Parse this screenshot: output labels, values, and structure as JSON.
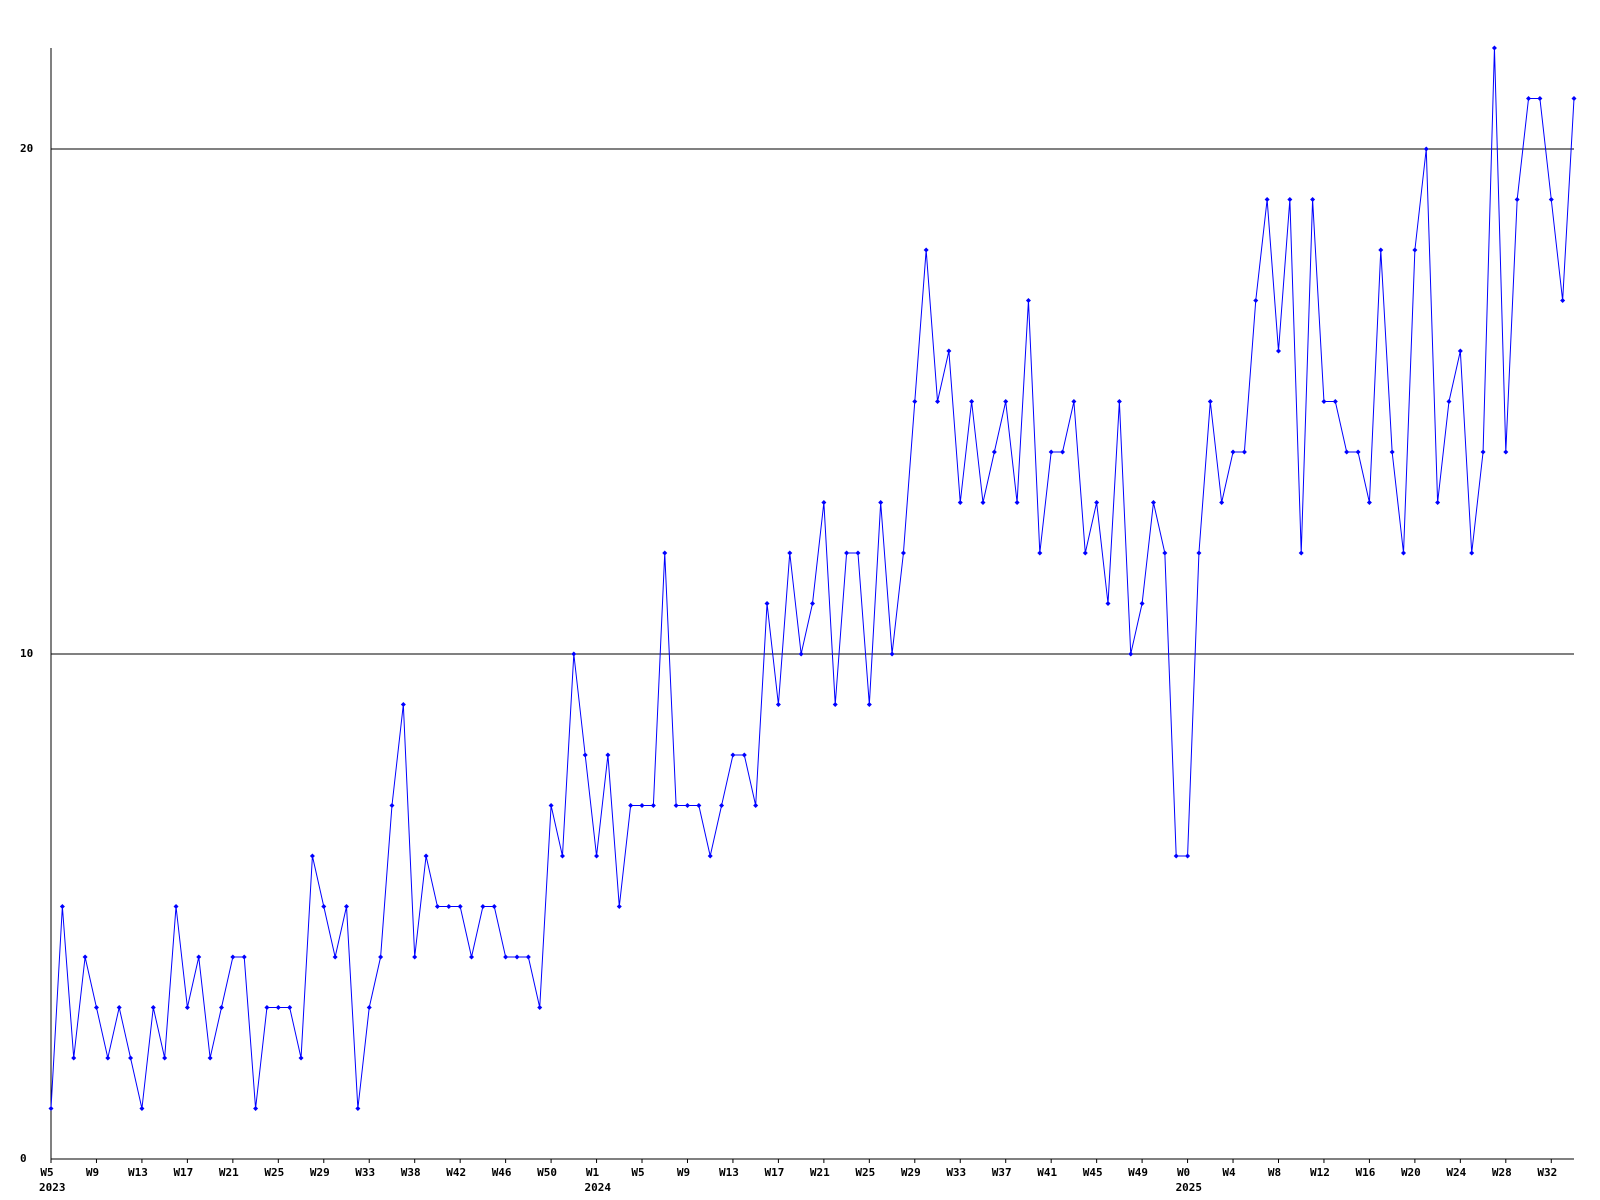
{
  "chart_data": {
    "type": "line",
    "categories": [
      "W5",
      null,
      null,
      null,
      "W9",
      null,
      null,
      null,
      "W13",
      null,
      null,
      null,
      "W17",
      null,
      null,
      null,
      "W21",
      null,
      null,
      null,
      "W25",
      null,
      null,
      null,
      "W29",
      null,
      null,
      null,
      "W33",
      null,
      null,
      null,
      "W38",
      null,
      null,
      null,
      "W42",
      null,
      null,
      null,
      "W46",
      null,
      null,
      null,
      "W50",
      null,
      null,
      null,
      "W1",
      null,
      null,
      null,
      "W5",
      null,
      null,
      null,
      "W9",
      null,
      null,
      null,
      "W13",
      null,
      null,
      null,
      "W17",
      null,
      null,
      null,
      "W21",
      null,
      null,
      null,
      "W25",
      null,
      null,
      null,
      "W29",
      null,
      null,
      null,
      "W33",
      null,
      null,
      null,
      "W37",
      null,
      null,
      null,
      "W41",
      null,
      null,
      null,
      "W45",
      null,
      null,
      null,
      "W49",
      null,
      null,
      null,
      "W0",
      null,
      null,
      null,
      "W4",
      null,
      null,
      null,
      "W8",
      null,
      null,
      null,
      "W12",
      null,
      null,
      null,
      "W16",
      null,
      null,
      null,
      "W20",
      null,
      null,
      null,
      "W24",
      null,
      null,
      null,
      "W28",
      null,
      null,
      null,
      "W32",
      null,
      null
    ],
    "years": [
      "2023",
      null,
      null,
      null,
      null,
      null,
      null,
      null,
      null,
      null,
      null,
      null,
      null,
      null,
      null,
      null,
      null,
      null,
      null,
      null,
      null,
      null,
      null,
      null,
      null,
      null,
      null,
      null,
      null,
      null,
      null,
      null,
      null,
      null,
      null,
      null,
      null,
      null,
      null,
      null,
      null,
      null,
      null,
      null,
      null,
      null,
      null,
      null,
      "2024",
      null,
      null,
      null,
      null,
      null,
      null,
      null,
      null,
      null,
      null,
      null,
      null,
      null,
      null,
      null,
      null,
      null,
      null,
      null,
      null,
      null,
      null,
      null,
      null,
      null,
      null,
      null,
      null,
      null,
      null,
      null,
      null,
      null,
      null,
      null,
      null,
      null,
      null,
      null,
      null,
      null,
      null,
      null,
      null,
      null,
      null,
      null,
      null,
      null,
      null,
      null,
      "2025",
      null,
      null,
      null,
      null,
      null,
      null,
      null,
      null,
      null,
      null,
      null,
      null,
      null,
      null,
      null,
      null,
      null,
      null,
      null,
      null,
      null,
      null,
      null,
      null,
      null,
      null,
      null,
      null,
      null,
      null,
      null,
      null,
      null,
      null
    ],
    "values": [
      1,
      5,
      2,
      4,
      3,
      2,
      3,
      2,
      1,
      3,
      2,
      5,
      3,
      4,
      2,
      3,
      4,
      4,
      1,
      3,
      3,
      3,
      2,
      6,
      5,
      4,
      5,
      1,
      3,
      4,
      7,
      9,
      4,
      6,
      5,
      5,
      5,
      4,
      5,
      5,
      4,
      4,
      4,
      3,
      7,
      6,
      10,
      8,
      6,
      8,
      5,
      7,
      7,
      7,
      12,
      7,
      7,
      7,
      6,
      7,
      8,
      8,
      7,
      11,
      9,
      12,
      10,
      11,
      13,
      9,
      12,
      12,
      9,
      13,
      10,
      12,
      15,
      18,
      15,
      16,
      13,
      15,
      13,
      14,
      15,
      13,
      17,
      12,
      14,
      14,
      15,
      12,
      13,
      11,
      15,
      10,
      11,
      13,
      12,
      6,
      6,
      12,
      15,
      13,
      14,
      14,
      17,
      19,
      16,
      19,
      12,
      19,
      15,
      15,
      14,
      14,
      13,
      18,
      14,
      12,
      18,
      20,
      13,
      15,
      16,
      12,
      14,
      22,
      14,
      19,
      21,
      21,
      19,
      17,
      21
    ],
    "color": "#0000ff",
    "ylim": [
      0,
      22
    ],
    "yticks": [
      0,
      10,
      20
    ],
    "grid": true
  }
}
